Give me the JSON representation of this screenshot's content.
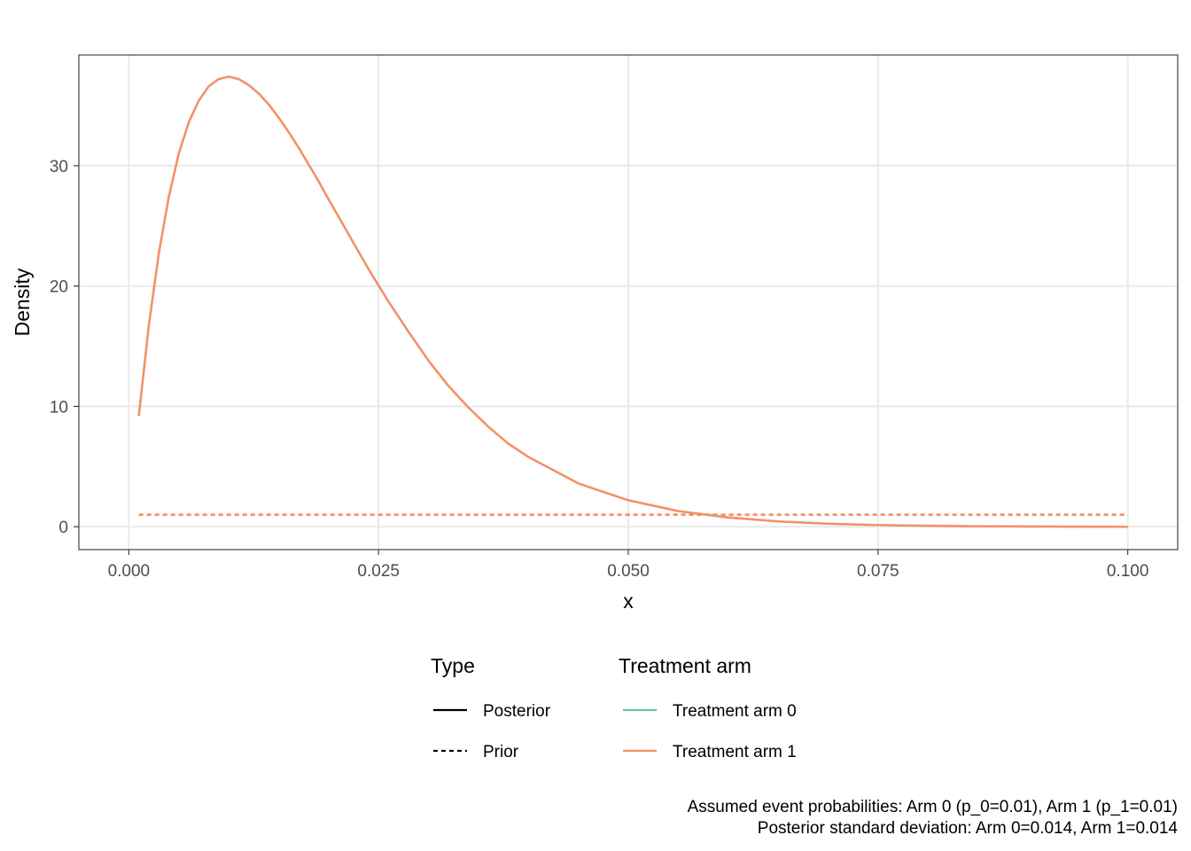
{
  "chart_data": {
    "type": "line",
    "xlabel": "x",
    "ylabel": "Density",
    "xlim": [
      -0.005,
      0.105
    ],
    "ylim": [
      -1.9,
      39.2
    ],
    "x_ticks": [
      0.0,
      0.025,
      0.05,
      0.075,
      0.1
    ],
    "x_tick_labels": [
      "0.000",
      "0.025",
      "0.050",
      "0.075",
      "0.100"
    ],
    "y_ticks": [
      0,
      10,
      20,
      30
    ],
    "y_tick_labels": [
      "0",
      "10",
      "20",
      "30"
    ],
    "grid": true,
    "legend_position": "bottom",
    "legends": [
      {
        "title": "Type",
        "entries": [
          {
            "label": "Posterior",
            "linetype": "solid",
            "color": "#000000"
          },
          {
            "label": "Prior",
            "linetype": "dashed",
            "color": "#000000"
          }
        ]
      },
      {
        "title": "Treatment arm",
        "entries": [
          {
            "label": "Treatment arm 0",
            "linetype": "solid",
            "color": "#66C2A5"
          },
          {
            "label": "Treatment arm 1",
            "linetype": "solid",
            "color": "#FC8D62"
          }
        ]
      }
    ],
    "series": [
      {
        "name": "Treatment arm 0",
        "type": "Posterior",
        "color": "#66C2A5",
        "linetype": "solid",
        "x": [
          0.001,
          0.002,
          0.003,
          0.004,
          0.005,
          0.006,
          0.007,
          0.008,
          0.009,
          0.01,
          0.011,
          0.012,
          0.013,
          0.014,
          0.015,
          0.016,
          0.017,
          0.018,
          0.019,
          0.02,
          0.022,
          0.024,
          0.026,
          0.028,
          0.03,
          0.032,
          0.034,
          0.036,
          0.038,
          0.04,
          0.045,
          0.05,
          0.055,
          0.06,
          0.065,
          0.07,
          0.075,
          0.08,
          0.085,
          0.09,
          0.095,
          0.1
        ],
        "values": [
          9.2,
          16.7,
          22.7,
          27.4,
          31.0,
          33.6,
          35.4,
          36.6,
          37.2,
          37.4,
          37.2,
          36.7,
          36.0,
          35.1,
          34.0,
          32.8,
          31.5,
          30.1,
          28.7,
          27.2,
          24.3,
          21.4,
          18.7,
          16.2,
          13.8,
          11.7,
          9.9,
          8.3,
          6.9,
          5.8,
          3.6,
          2.2,
          1.3,
          0.77,
          0.44,
          0.25,
          0.14,
          0.08,
          0.04,
          0.02,
          0.01,
          0.0
        ]
      },
      {
        "name": "Treatment arm 1",
        "type": "Posterior",
        "color": "#FC8D62",
        "linetype": "solid",
        "x": [
          0.001,
          0.002,
          0.003,
          0.004,
          0.005,
          0.006,
          0.007,
          0.008,
          0.009,
          0.01,
          0.011,
          0.012,
          0.013,
          0.014,
          0.015,
          0.016,
          0.017,
          0.018,
          0.019,
          0.02,
          0.022,
          0.024,
          0.026,
          0.028,
          0.03,
          0.032,
          0.034,
          0.036,
          0.038,
          0.04,
          0.045,
          0.05,
          0.055,
          0.06,
          0.065,
          0.07,
          0.075,
          0.08,
          0.085,
          0.09,
          0.095,
          0.1
        ],
        "values": [
          9.2,
          16.7,
          22.7,
          27.4,
          31.0,
          33.6,
          35.4,
          36.6,
          37.2,
          37.4,
          37.2,
          36.7,
          36.0,
          35.1,
          34.0,
          32.8,
          31.5,
          30.1,
          28.7,
          27.2,
          24.3,
          21.4,
          18.7,
          16.2,
          13.8,
          11.7,
          9.9,
          8.3,
          6.9,
          5.8,
          3.6,
          2.2,
          1.3,
          0.77,
          0.44,
          0.25,
          0.14,
          0.08,
          0.04,
          0.02,
          0.01,
          0.0
        ]
      },
      {
        "name": "Treatment arm 0",
        "type": "Prior",
        "color": "#66C2A5",
        "linetype": "dashed",
        "x": [
          0.001,
          0.1
        ],
        "values": [
          1.0,
          1.0
        ]
      },
      {
        "name": "Treatment arm 1",
        "type": "Prior",
        "color": "#FC8D62",
        "linetype": "dashed",
        "x": [
          0.001,
          0.1
        ],
        "values": [
          1.0,
          1.0
        ]
      }
    ],
    "caption": [
      "Assumed event probabilities: Arm 0 (p_0=0.01), Arm 1 (p_1=0.01)",
      "Posterior standard deviation: Arm 0=0.014, Arm 1=0.014"
    ]
  }
}
